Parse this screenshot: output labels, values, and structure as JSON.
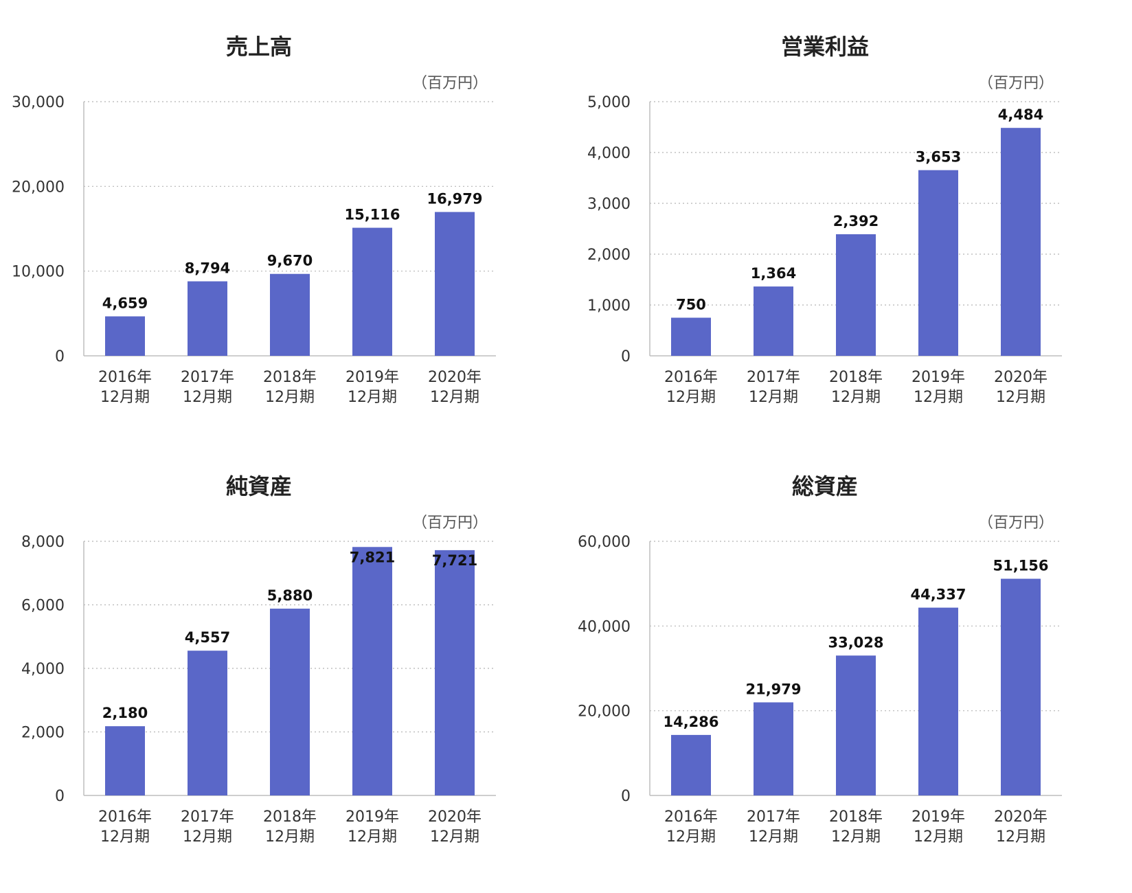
{
  "colors": {
    "bar": "#5a67c8",
    "text": "#222222",
    "grid": "#b5b5b5"
  },
  "chart_data": [
    {
      "type": "bar",
      "title": "売上高",
      "unit_label": "（百万円）",
      "categories": [
        "2016年\n12月期",
        "2017年\n12月期",
        "2018年\n12月期",
        "2019年\n12月期",
        "2020年\n12月期"
      ],
      "values": [
        4659,
        8794,
        9670,
        15116,
        16979
      ],
      "value_labels": [
        "4,659",
        "8,794",
        "9,670",
        "15,116",
        "16,979"
      ],
      "yticks": [
        0,
        10000,
        20000,
        30000
      ],
      "ytick_labels": [
        "0",
        "10,000",
        "20,000",
        "30,000"
      ],
      "ylim": [
        0,
        30000
      ],
      "grid": true
    },
    {
      "type": "bar",
      "title": "営業利益",
      "unit_label": "（百万円）",
      "categories": [
        "2016年\n12月期",
        "2017年\n12月期",
        "2018年\n12月期",
        "2019年\n12月期",
        "2020年\n12月期"
      ],
      "values": [
        750,
        1364,
        2392,
        3653,
        4484
      ],
      "value_labels": [
        "750",
        "1,364",
        "2,392",
        "3,653",
        "4,484"
      ],
      "yticks": [
        0,
        1000,
        2000,
        3000,
        4000,
        5000
      ],
      "ytick_labels": [
        "0",
        "1,000",
        "2,000",
        "3,000",
        "4,000",
        "5,000"
      ],
      "ylim": [
        0,
        5000
      ],
      "grid": true
    },
    {
      "type": "bar",
      "title": "純資産",
      "unit_label": "（百万円）",
      "categories": [
        "2016年\n12月期",
        "2017年\n12月期",
        "2018年\n12月期",
        "2019年\n12月期",
        "2020年\n12月期"
      ],
      "values": [
        2180,
        4557,
        5880,
        7821,
        7721
      ],
      "value_labels": [
        "2,180",
        "4,557",
        "5,880",
        "7,821",
        "7,721"
      ],
      "yticks": [
        0,
        2000,
        4000,
        6000,
        8000
      ],
      "ytick_labels": [
        "0",
        "2,000",
        "4,000",
        "6,000",
        "8,000"
      ],
      "ylim": [
        0,
        8000
      ],
      "grid": true
    },
    {
      "type": "bar",
      "title": "総資産",
      "unit_label": "（百万円）",
      "categories": [
        "2016年\n12月期",
        "2017年\n12月期",
        "2018年\n12月期",
        "2019年\n12月期",
        "2020年\n12月期"
      ],
      "values": [
        14286,
        21979,
        33028,
        44337,
        51156
      ],
      "value_labels": [
        "14,286",
        "21,979",
        "33,028",
        "44,337",
        "51,156"
      ],
      "yticks": [
        0,
        20000,
        40000,
        60000
      ],
      "ytick_labels": [
        "0",
        "20,000",
        "40,000",
        "60,000"
      ],
      "ylim": [
        0,
        60000
      ],
      "grid": true
    }
  ]
}
